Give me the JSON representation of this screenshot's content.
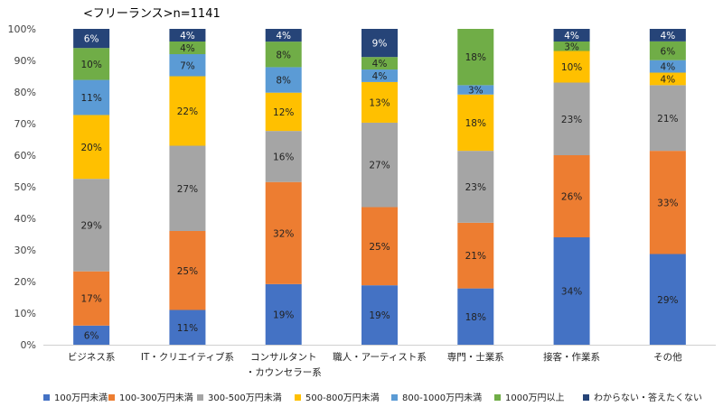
{
  "title": "<フリーランス>n=1141",
  "chart_data": {
    "type": "bar",
    "stacked": true,
    "stacked_percent": true,
    "title": "<フリーランス>n=1141",
    "categories": [
      [
        "ビジネス系"
      ],
      [
        "IT・クリエイティブ系"
      ],
      [
        "コンサルタント",
        "・カウンセラー系"
      ],
      [
        "職人・アーティスト系"
      ],
      [
        "専門・士業系"
      ],
      [
        "接客・作業系"
      ],
      [
        "その他"
      ]
    ],
    "yticks": [
      "0%",
      "10%",
      "20%",
      "30%",
      "40%",
      "50%",
      "60%",
      "70%",
      "80%",
      "90%",
      "100%"
    ],
    "ylim": [
      0,
      100
    ],
    "grid": false,
    "legend_position": "bottom",
    "series": [
      {
        "name": "100万円未満",
        "color": "#4472C4",
        "values": [
          6,
          11,
          19,
          19,
          18,
          34,
          29
        ],
        "labels": [
          "6%",
          "11%",
          "19%",
          "19%",
          "18%",
          "34%",
          "29%"
        ]
      },
      {
        "name": "100-300万円未満",
        "color": "#ED7D31",
        "values": [
          17,
          25,
          32,
          25,
          21,
          26,
          33
        ],
        "labels": [
          "17%",
          "25%",
          "32%",
          "25%",
          "21%",
          "26%",
          "33%"
        ]
      },
      {
        "name": "300-500万円未満",
        "color": "#A5A5A5",
        "values": [
          29,
          27,
          16,
          27,
          23,
          23,
          21
        ],
        "labels": [
          "29%",
          "27%",
          "16%",
          "27%",
          "23%",
          "23%",
          "21%"
        ]
      },
      {
        "name": "500-800万円未満",
        "color": "#FFC000",
        "values": [
          20,
          22,
          12,
          13,
          18,
          10,
          4
        ],
        "labels": [
          "20%",
          "22%",
          "12%",
          "13%",
          "18%",
          "10%",
          "4%"
        ]
      },
      {
        "name": "800-1000万円未満",
        "color": "#5B9BD5",
        "values": [
          11,
          7,
          8,
          4,
          3,
          0,
          4
        ],
        "labels": [
          "11%",
          "7%",
          "8%",
          "4%",
          "3%",
          "",
          "4%"
        ]
      },
      {
        "name": "1000万円以上",
        "color": "#70AD47",
        "values": [
          10,
          4,
          8,
          4,
          18,
          3,
          6
        ],
        "labels": [
          "10%",
          "4%",
          "8%",
          "4%",
          "18%",
          "3%",
          "6%"
        ]
      },
      {
        "name": "わからない・答えたくない",
        "color": "#264478",
        "values": [
          6,
          4,
          4,
          9,
          0,
          4,
          4
        ],
        "labels": [
          "6%",
          "4%",
          "4%",
          "9%",
          "",
          "4%",
          "4%"
        ]
      }
    ]
  }
}
